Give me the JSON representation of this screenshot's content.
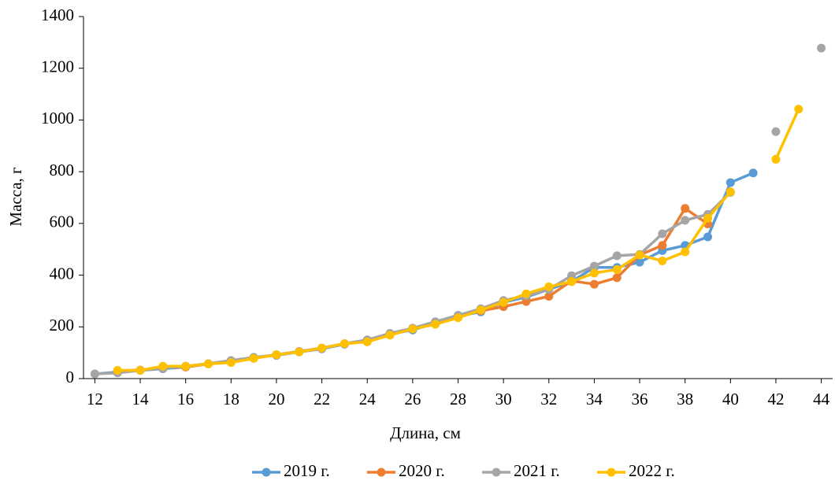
{
  "chart_data": {
    "type": "line",
    "x_label": "Длина, см",
    "y_label": "Масса, г",
    "x": [
      12,
      13,
      14,
      15,
      16,
      17,
      18,
      19,
      20,
      21,
      22,
      23,
      24,
      25,
      26,
      27,
      28,
      29,
      30,
      31,
      32,
      33,
      34,
      35,
      36,
      37,
      38,
      39,
      40,
      41,
      42,
      43,
      44
    ],
    "xlim": [
      11.5,
      44.5
    ],
    "xticks": [
      12,
      14,
      16,
      18,
      20,
      22,
      24,
      26,
      28,
      30,
      32,
      34,
      36,
      38,
      40,
      42,
      44
    ],
    "ylim": [
      0,
      1400
    ],
    "yticks": [
      0,
      200,
      400,
      600,
      800,
      1000,
      1200,
      1400
    ],
    "grid": false,
    "legend": "bottom",
    "series": [
      {
        "name": "2019 г.",
        "color": "#5b9bd5",
        "values": [
          18,
          25,
          32,
          38,
          45,
          57,
          68,
          82,
          90,
          103,
          115,
          133,
          148,
          172,
          188,
          215,
          242,
          258,
          295,
          315,
          345,
          375,
          430,
          430,
          450,
          495,
          515,
          548,
          758,
          795,
          null,
          null,
          null
        ]
      },
      {
        "name": "2020 г.",
        "color": "#ed7d31",
        "values": [
          null,
          30,
          33,
          42,
          45,
          57,
          65,
          80,
          92,
          105,
          118,
          135,
          145,
          172,
          192,
          212,
          240,
          262,
          278,
          298,
          318,
          378,
          365,
          390,
          478,
          515,
          658,
          598,
          null,
          null,
          null,
          null,
          null
        ]
      },
      {
        "name": "2021 г.",
        "color": "#a5a5a5",
        "values": [
          18,
          22,
          32,
          40,
          48,
          58,
          70,
          82,
          92,
          105,
          118,
          135,
          150,
          175,
          195,
          220,
          245,
          270,
          302,
          320,
          345,
          398,
          435,
          475,
          480,
          560,
          612,
          635,
          720,
          null,
          955,
          null,
          1278
        ]
      },
      {
        "name": "2022 г.",
        "color": "#ffc000",
        "values": [
          null,
          32,
          32,
          48,
          48,
          57,
          62,
          78,
          92,
          103,
          118,
          135,
          142,
          168,
          192,
          210,
          235,
          265,
          295,
          328,
          355,
          375,
          408,
          422,
          478,
          455,
          490,
          620,
          722,
          null,
          848,
          1042,
          null
        ]
      }
    ]
  }
}
